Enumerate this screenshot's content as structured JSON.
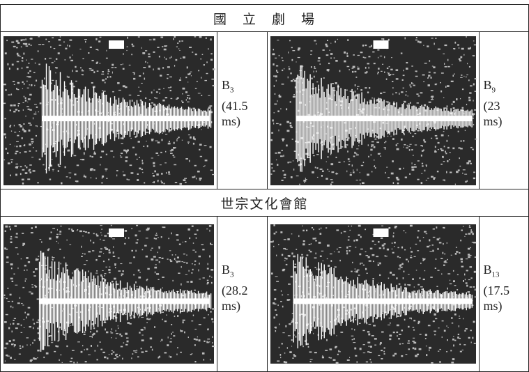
{
  "table": {
    "sections": [
      {
        "title": "國　立　劇　場",
        "cells": [
          {
            "label": "B",
            "subscript": "3",
            "value": "(41.5",
            "unit": "ms)"
          },
          {
            "label": "B",
            "subscript": "9",
            "value": "(23",
            "unit": "ms)"
          }
        ]
      },
      {
        "title": "世宗文化會館",
        "cells": [
          {
            "label": "B",
            "subscript": "3",
            "value": "(28.2",
            "unit": "ms)"
          },
          {
            "label": "B",
            "subscript": "13",
            "value": "(17.5",
            "unit": "ms)"
          }
        ]
      }
    ]
  }
}
